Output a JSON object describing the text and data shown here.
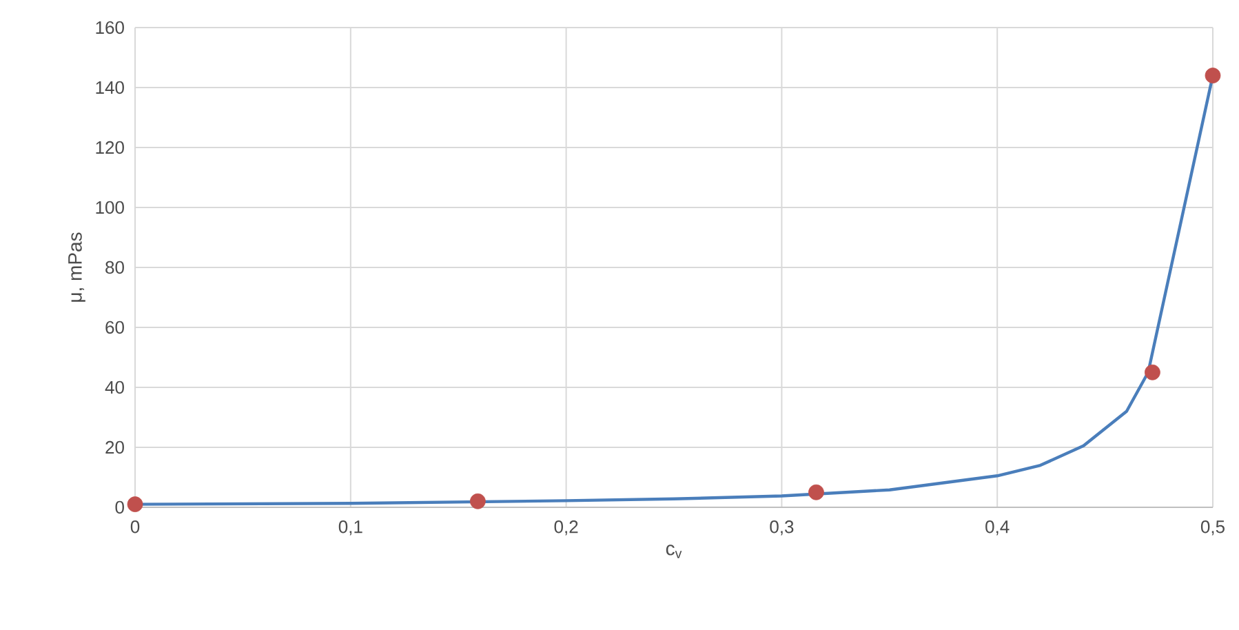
{
  "chart_data": {
    "type": "line",
    "xlabel": "c$_{v}$",
    "ylabel": "μ, mPas",
    "xlim": [
      0,
      0.5
    ],
    "ylim": [
      0,
      160
    ],
    "xticks": [
      0,
      {
        "value": 0.1,
        "label": "0,1"
      },
      {
        "value": 0.2,
        "label": "0,2"
      },
      {
        "value": 0.3,
        "label": "0,3"
      },
      {
        "value": 0.4,
        "label": "0,4"
      },
      {
        "value": 0.5,
        "label": "0,5"
      }
    ],
    "yticks": [
      0,
      20,
      40,
      60,
      80,
      100,
      120,
      140,
      160
    ],
    "grid": true,
    "series": [
      {
        "color": "#4a7ebb",
        "marker": "none",
        "x": [
          0,
          0.1,
          0.2,
          0.25,
          0.3,
          0.35,
          0.4,
          0.42,
          0.44,
          0.46,
          0.47,
          0.5
        ],
        "values": [
          1,
          1.3,
          2.2,
          2.8,
          3.8,
          5.8,
          10.5,
          14,
          20.5,
          32,
          45,
          144
        ]
      },
      {
        "type": "scatter",
        "color": "#c0504d",
        "marker": "circle",
        "x": [
          0,
          0.159,
          0.316,
          0.472,
          0.5
        ],
        "values": [
          1,
          2,
          5,
          45,
          144
        ]
      }
    ]
  }
}
